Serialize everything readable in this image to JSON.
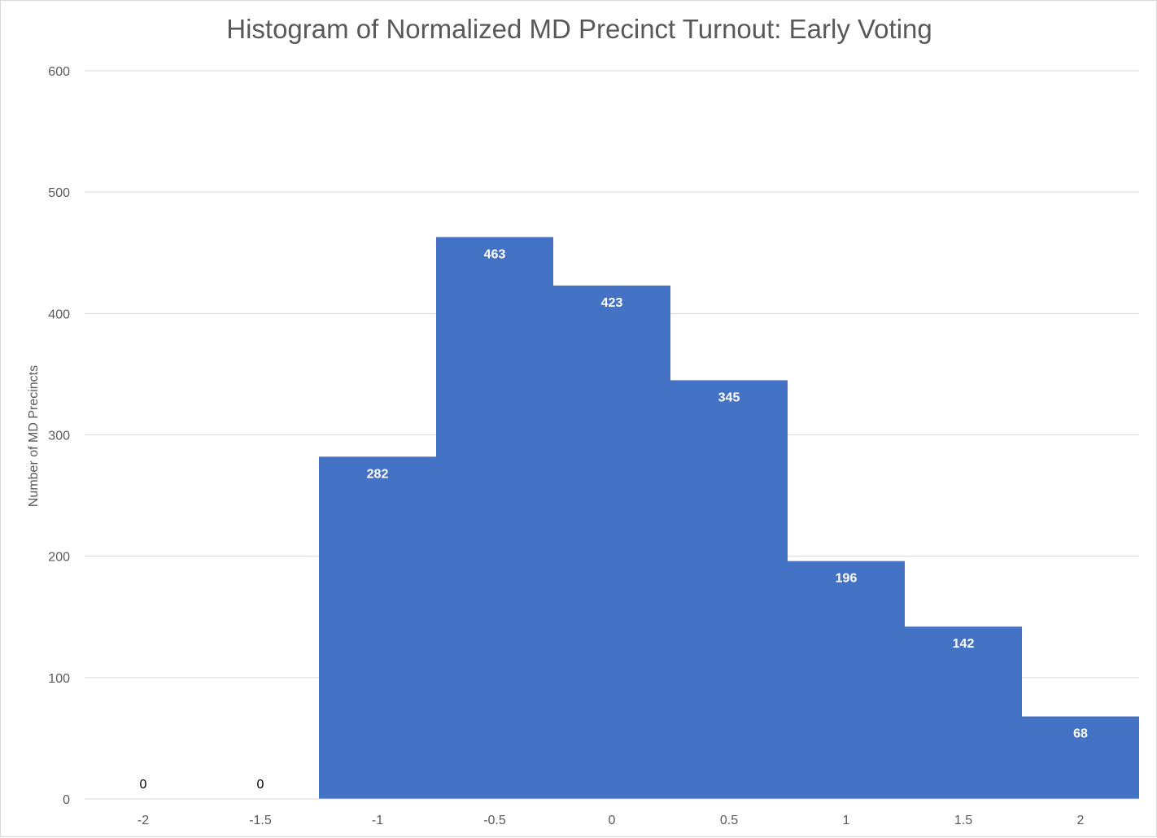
{
  "chart_data": {
    "type": "bar",
    "title": "Histogram of Normalized MD Precinct Turnout: Early Voting",
    "xlabel": "",
    "ylabel": "Number of MD Precincts",
    "categories": [
      "-2",
      "-1.5",
      "-1",
      "-0.5",
      "0",
      "0.5",
      "1",
      "1.5",
      "2"
    ],
    "values": [
      0,
      0,
      282,
      463,
      423,
      345,
      196,
      142,
      68
    ],
    "ylim": [
      0,
      600
    ],
    "yticks": [
      0,
      100,
      200,
      300,
      400,
      500,
      600
    ],
    "grid": true,
    "legend": "none",
    "bar_color": "#4472c4",
    "data_labels": true
  }
}
